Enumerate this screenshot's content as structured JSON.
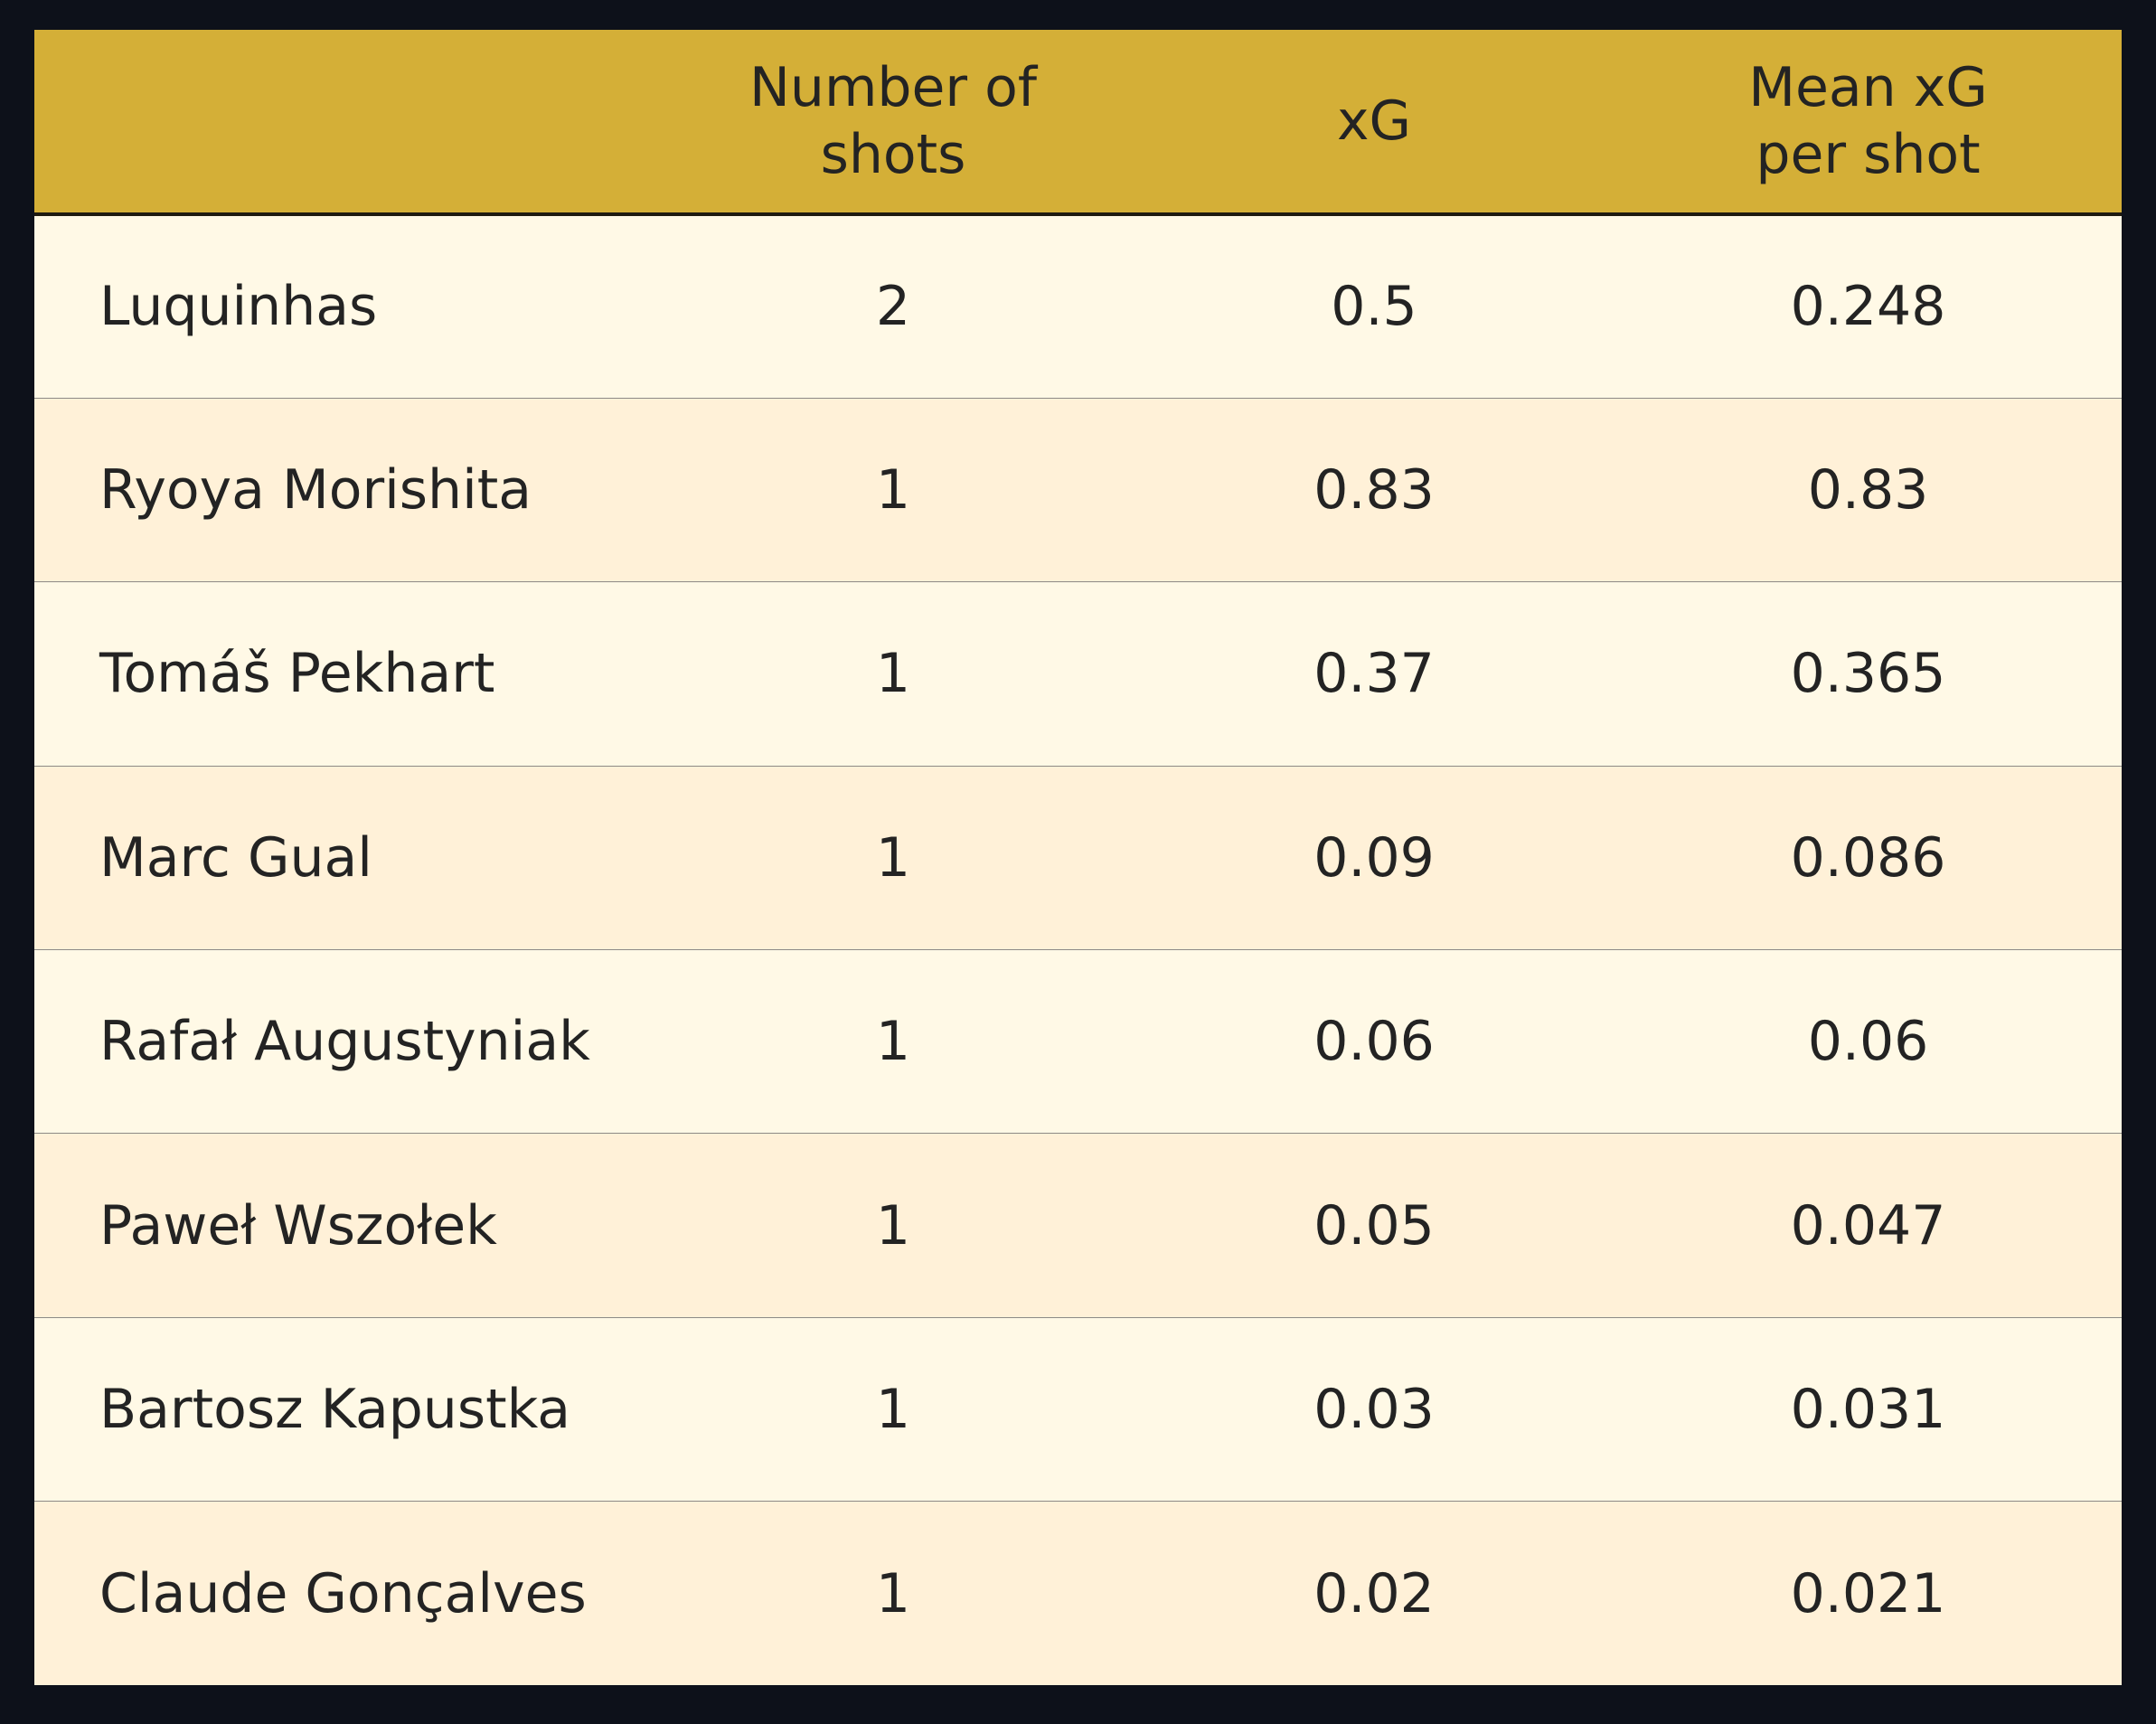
{
  "chart_data": {
    "type": "table",
    "columns": [
      "",
      [
        "Number of",
        "shots"
      ],
      [
        "xG"
      ],
      [
        "Mean xG",
        "per shot"
      ]
    ],
    "rows": [
      {
        "player": "Luquinhas",
        "shots": "2",
        "xg": "0.5",
        "mean_xg": "0.248"
      },
      {
        "player": "Ryoya Morishita",
        "shots": "1",
        "xg": "0.83",
        "mean_xg": "0.83"
      },
      {
        "player": "Tomáš Pekhart",
        "shots": "1",
        "xg": "0.37",
        "mean_xg": "0.365"
      },
      {
        "player": "Marc Gual",
        "shots": "1",
        "xg": "0.09",
        "mean_xg": "0.086"
      },
      {
        "player": "Rafał Augustyniak",
        "shots": "1",
        "xg": "0.06",
        "mean_xg": "0.06"
      },
      {
        "player": "Paweł Wszołek",
        "shots": "1",
        "xg": "0.05",
        "mean_xg": "0.047"
      },
      {
        "player": "Bartosz Kapustka",
        "shots": "1",
        "xg": "0.03",
        "mean_xg": "0.031"
      },
      {
        "player": "Claude Gonçalves",
        "shots": "1",
        "xg": "0.02",
        "mean_xg": "0.021"
      }
    ]
  },
  "colors": {
    "background": "#0d111a",
    "header": "#d4af37",
    "row_light": "#fff9e6",
    "row_alt": "#fff1d8",
    "text": "#232323"
  }
}
